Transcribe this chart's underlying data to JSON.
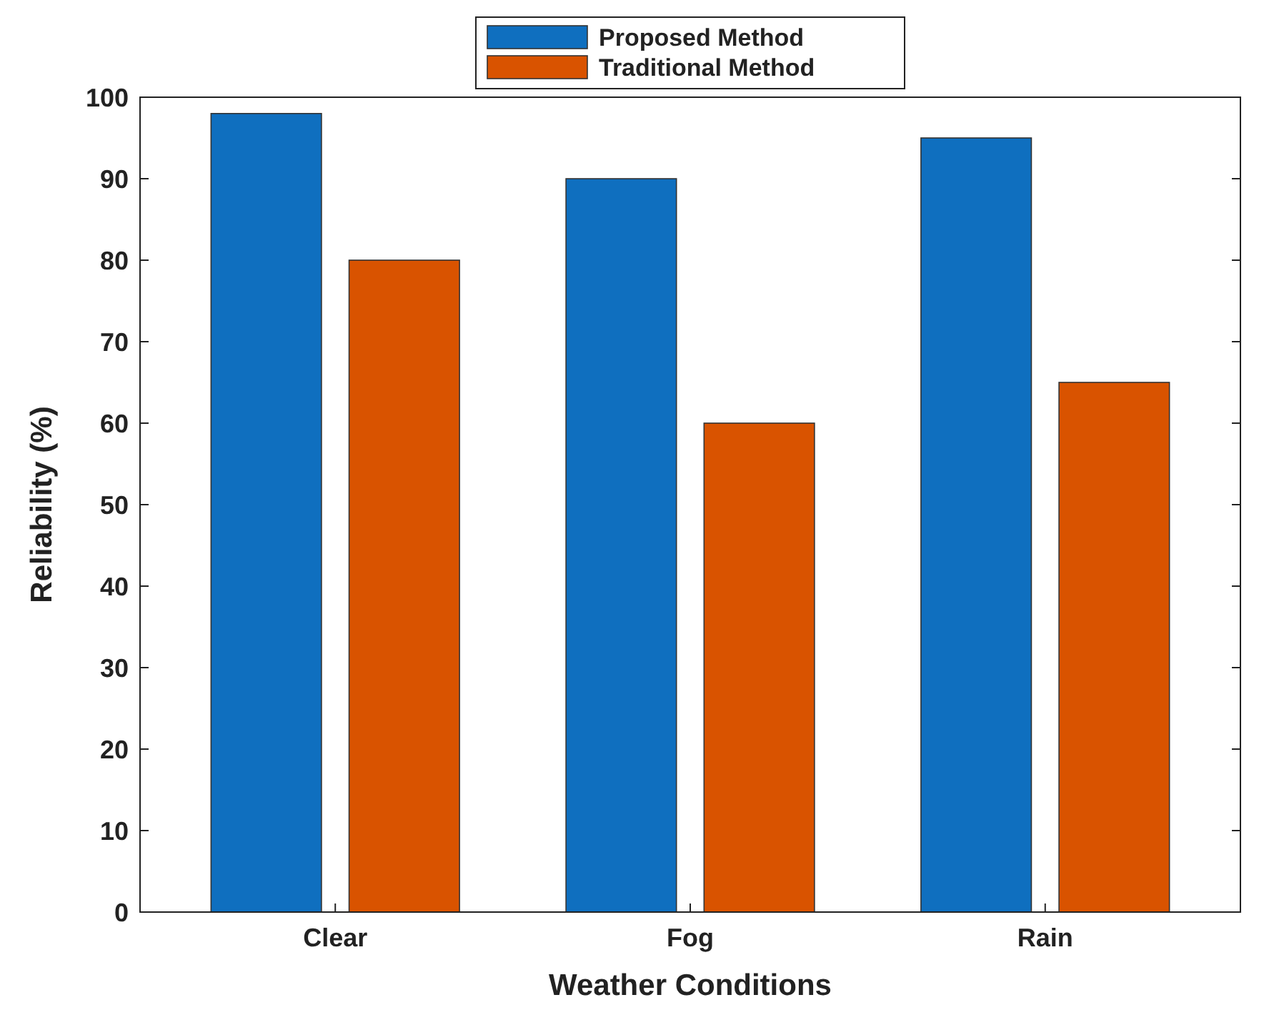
{
  "chart_data": {
    "type": "bar",
    "xlabel": "Weather Conditions",
    "ylabel": "Reliability (%)",
    "categories": [
      "Clear",
      "Fog",
      "Rain"
    ],
    "series": [
      {
        "name": "Proposed Method",
        "color": "#0f6fbf",
        "values": [
          98,
          90,
          95
        ]
      },
      {
        "name": "Traditional Method",
        "color": "#d95300",
        "values": [
          80,
          60,
          65
        ]
      }
    ],
    "ylim": [
      0,
      100
    ],
    "yticks": [
      0,
      10,
      20,
      30,
      40,
      50,
      60,
      70,
      80,
      90,
      100
    ],
    "legend": "top",
    "grid": false
  }
}
